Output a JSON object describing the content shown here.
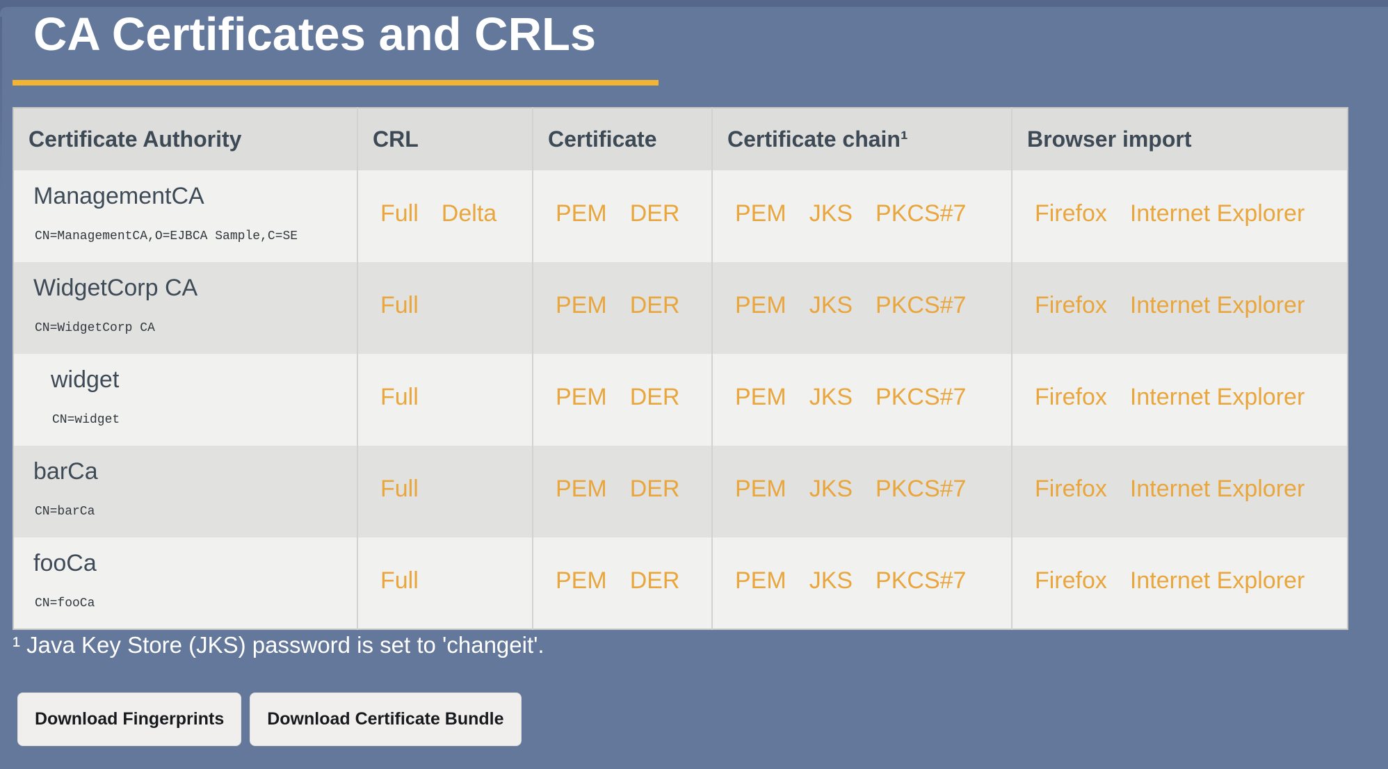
{
  "page": {
    "title": "CA Certificates and CRLs",
    "footnote": "¹ Java Key Store (JKS) password is set to 'changeit'.",
    "buttons": [
      {
        "label": "Download Fingerprints"
      },
      {
        "label": "Download Certificate Bundle"
      }
    ]
  },
  "colors": {
    "background": "#64789b",
    "edge": "#55678a",
    "accent_rule": "#f2b431",
    "link": "#e9a63d"
  },
  "table": {
    "headers": [
      "Certificate Authority",
      "CRL",
      "Certificate",
      "Certificate chain¹",
      "Browser import"
    ],
    "rows": [
      {
        "name": "ManagementCA",
        "dn": "CN=ManagementCA,O=EJBCA Sample,C=SE",
        "indent": false,
        "crl": [
          "Full",
          "Delta"
        ],
        "certificate": [
          "PEM",
          "DER"
        ],
        "chain": [
          "PEM",
          "JKS",
          "PKCS#7"
        ],
        "browser": [
          "Firefox",
          "Internet Explorer"
        ]
      },
      {
        "name": "WidgetCorp CA",
        "dn": "CN=WidgetCorp CA",
        "indent": false,
        "crl": [
          "Full"
        ],
        "certificate": [
          "PEM",
          "DER"
        ],
        "chain": [
          "PEM",
          "JKS",
          "PKCS#7"
        ],
        "browser": [
          "Firefox",
          "Internet Explorer"
        ]
      },
      {
        "name": "widget",
        "dn": "CN=widget",
        "indent": true,
        "crl": [
          "Full"
        ],
        "certificate": [
          "PEM",
          "DER"
        ],
        "chain": [
          "PEM",
          "JKS",
          "PKCS#7"
        ],
        "browser": [
          "Firefox",
          "Internet Explorer"
        ]
      },
      {
        "name": "barCa",
        "dn": "CN=barCa",
        "indent": false,
        "crl": [
          "Full"
        ],
        "certificate": [
          "PEM",
          "DER"
        ],
        "chain": [
          "PEM",
          "JKS",
          "PKCS#7"
        ],
        "browser": [
          "Firefox",
          "Internet Explorer"
        ]
      },
      {
        "name": "fooCa",
        "dn": "CN=fooCa",
        "indent": false,
        "crl": [
          "Full"
        ],
        "certificate": [
          "PEM",
          "DER"
        ],
        "chain": [
          "PEM",
          "JKS",
          "PKCS#7"
        ],
        "browser": [
          "Firefox",
          "Internet Explorer"
        ]
      }
    ]
  }
}
